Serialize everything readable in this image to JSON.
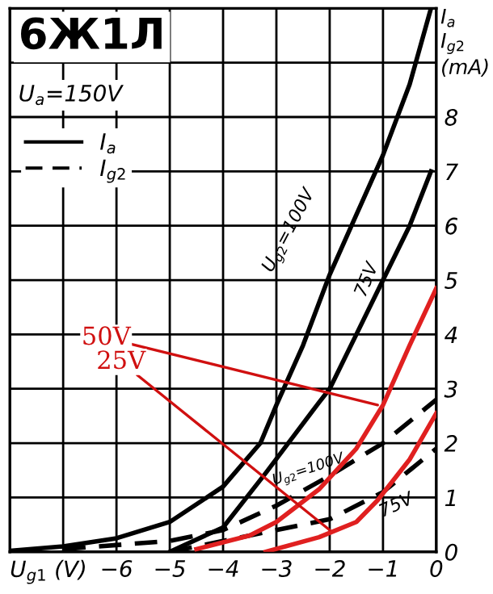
{
  "chart_data": {
    "type": "line",
    "title": "6Ж1Л",
    "subtitle": "U$_{a}$=150V",
    "ylabel": "I$_{a}$\nI$_{g2}$\n(mA)",
    "xlabel": "U$_{g1}$ (V)",
    "xlim": [
      -8,
      0
    ],
    "ylim": [
      0,
      10
    ],
    "xticks": [
      {
        "value": -8,
        "label": null
      },
      {
        "value": -7,
        "label": null
      },
      {
        "value": -6,
        "label": "−6"
      },
      {
        "value": -5,
        "label": "−5"
      },
      {
        "value": -4,
        "label": "−4"
      },
      {
        "value": -3,
        "label": "−3"
      },
      {
        "value": -2,
        "label": "−2"
      },
      {
        "value": -1,
        "label": "−1"
      },
      0
    ],
    "yticks": [
      0,
      1,
      2,
      3,
      4,
      5,
      6,
      7,
      8,
      {
        "value": 9,
        "label": null
      },
      {
        "value": 10,
        "label": null
      }
    ],
    "grid": true,
    "legend": "top left",
    "series": [
      {
        "name": "I$_{a}$",
        "color": "#000000",
        "line_style": "solid",
        "x": [
          -8,
          -7,
          -6,
          -5,
          -4,
          -3.3,
          -3,
          -2.5,
          -2,
          -1.5,
          -1,
          -0.5,
          -0.1
        ],
        "values": [
          0.02,
          0.1,
          0.25,
          0.55,
          1.2,
          2,
          2.7,
          3.8,
          5.1,
          6.2,
          7.3,
          8.6,
          10
        ]
      },
      {
        "color": "#000000",
        "line_style": "solid",
        "x": [
          -5,
          -4,
          -3.2,
          -2.2,
          -2,
          -1.5,
          -1,
          -0.5,
          -0.1
        ],
        "values": [
          0,
          0.45,
          1.45,
          2.75,
          3,
          4,
          5,
          6,
          7
        ]
      },
      {
        "name": "I$_{g2}$",
        "color": "#000000",
        "line_style": "dashed",
        "x": [
          -7,
          -5,
          -4,
          -3,
          -2,
          -1,
          0
        ],
        "values": [
          0.05,
          0.2,
          0.4,
          0.85,
          1.4,
          2,
          2.8
        ]
      },
      {
        "color": "#000000",
        "line_style": "dashed",
        "x": [
          -5,
          -4,
          -3,
          -2,
          -1,
          0
        ],
        "values": [
          0,
          0.2,
          0.4,
          0.6,
          1.1,
          1.9
        ]
      },
      {
        "color": "#e02020",
        "line_style": "solid",
        "x": [
          -4.5,
          -3.5,
          -3,
          -2.2,
          -1.5,
          -1,
          -0.5,
          0
        ],
        "values": [
          0.05,
          0.3,
          0.55,
          1.15,
          1.9,
          2.7,
          3.8,
          4.85
        ]
      },
      {
        "color": "#e02020",
        "line_style": "solid",
        "x": [
          -3.2,
          -2.2,
          -1.5,
          -1.1,
          -0.5,
          0
        ],
        "values": [
          0,
          0.27,
          0.55,
          0.95,
          1.7,
          2.55
        ]
      }
    ],
    "annotations": [
      "U$_{g2}$=100V",
      "75V",
      "U$_{g2}$=100V",
      "75V",
      {
        "text": "50V",
        "x": -1.1,
        "y": 2.7
      },
      {
        "text": "25V",
        "x": -2.0,
        "y": 0.4
      }
    ]
  }
}
